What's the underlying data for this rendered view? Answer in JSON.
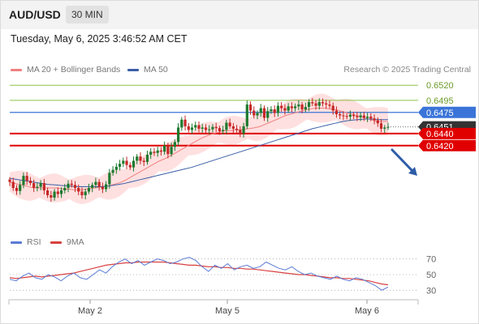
{
  "header": {
    "symbol": "AUD/USD",
    "interval": "30 MIN"
  },
  "timestamp": "Tuesday, May 6, 2025 3:46:52 AM CET",
  "legend": {
    "ma": "MA 20 + Bollinger Bands",
    "ma50": "MA 50"
  },
  "credit": "Research © 2025 Trading Central",
  "rsi_legend": {
    "rsi": "RSI",
    "ma9": "9MA"
  },
  "colors": {
    "bull": "#1e7a2e",
    "bear": "#c62828",
    "resistance": "#8bc34a",
    "pivot": "#3a74d8",
    "support": "#e00000",
    "last": "#333333",
    "ma20": "#f08080",
    "ma50": "#3a5fa8",
    "band": "#ffd6d6",
    "rsi": "#5b7bd5",
    "rsi_ma": "#d84040",
    "arrow": "#2e5ca8"
  },
  "chart_data": {
    "type": "candlestick",
    "title": "AUD/USD",
    "interval": "30 MIN",
    "ylim": [
      0.6275,
      0.6535
    ],
    "x_ticks": [
      "May 2",
      "May 5",
      "May 6"
    ],
    "levels": [
      {
        "label": "0.6520",
        "value": 0.652,
        "kind": "resistance"
      },
      {
        "label": "0.6495",
        "value": 0.6495,
        "kind": "resistance"
      },
      {
        "label": "0.6475",
        "value": 0.6475,
        "kind": "pivot"
      },
      {
        "label": "0.6451",
        "value": 0.6451,
        "kind": "last"
      },
      {
        "label": "0.6440",
        "value": 0.644,
        "kind": "support"
      },
      {
        "label": "0.6420",
        "value": 0.642,
        "kind": "support"
      }
    ],
    "closes": [
      0.636,
      0.635,
      0.6345,
      0.6355,
      0.637,
      0.6362,
      0.6358,
      0.635,
      0.6352,
      0.6358,
      0.6346,
      0.6338,
      0.6334,
      0.6344,
      0.634,
      0.6346,
      0.635,
      0.6357,
      0.6355,
      0.635,
      0.6344,
      0.6338,
      0.6344,
      0.635,
      0.6355,
      0.636,
      0.6352,
      0.6348,
      0.6356,
      0.6375,
      0.638,
      0.6385,
      0.639,
      0.6395,
      0.6388,
      0.6384,
      0.6395,
      0.6402,
      0.6395,
      0.6393,
      0.6405,
      0.641,
      0.6408,
      0.6412,
      0.641,
      0.642,
      0.6406,
      0.6418,
      0.6426,
      0.645,
      0.6463,
      0.6452,
      0.6446,
      0.645,
      0.6454,
      0.6448,
      0.645,
      0.6446,
      0.6447,
      0.6451,
      0.6449,
      0.6444,
      0.6446,
      0.6458,
      0.6452,
      0.6448,
      0.6446,
      0.644,
      0.6452,
      0.6488,
      0.6478,
      0.647,
      0.6474,
      0.6482,
      0.6466,
      0.6477,
      0.648,
      0.6474,
      0.6486,
      0.6482,
      0.6478,
      0.6485,
      0.6482,
      0.6485,
      0.6488,
      0.648,
      0.6484,
      0.6492,
      0.649,
      0.6486,
      0.6492,
      0.649,
      0.6488,
      0.6486,
      0.6478,
      0.6472,
      0.647,
      0.6469,
      0.6468,
      0.6471,
      0.6469,
      0.6467,
      0.647,
      0.6466,
      0.6468,
      0.6465,
      0.6462,
      0.6457,
      0.6448,
      0.645,
      0.6451
    ],
    "ma20": [
      0.636,
      0.6358,
      0.6356,
      0.6355,
      0.6353,
      0.6351,
      0.635,
      0.635,
      0.635,
      0.635,
      0.635,
      0.635,
      0.6349,
      0.6348,
      0.6348,
      0.6347,
      0.6347,
      0.6347,
      0.6348,
      0.6349,
      0.635,
      0.6351,
      0.6352,
      0.6353,
      0.6355,
      0.6357,
      0.6359,
      0.6362,
      0.6366,
      0.637,
      0.6374,
      0.6378,
      0.6382,
      0.6386,
      0.639,
      0.6394,
      0.6397,
      0.64,
      0.6404,
      0.6408,
      0.6412,
      0.6416,
      0.642,
      0.6424,
      0.6428,
      0.6432,
      0.6435,
      0.6438,
      0.644,
      0.6442,
      0.6444,
      0.6445,
      0.6445,
      0.6446,
      0.6446,
      0.6447,
      0.6448,
      0.6449,
      0.645,
      0.6452,
      0.6455,
      0.6458,
      0.6461,
      0.6464,
      0.6467,
      0.647,
      0.6472,
      0.6474,
      0.6476,
      0.6478,
      0.648,
      0.6481,
      0.6482,
      0.6482,
      0.6482,
      0.6481,
      0.648,
      0.6479,
      0.6477,
      0.6475,
      0.6473,
      0.6471,
      0.6469,
      0.6467,
      0.6465,
      0.6463,
      0.6461,
      0.646,
      0.646,
      0.646
    ],
    "ma50": [
      0.6366,
      0.6364,
      0.6362,
      0.636,
      0.6358,
      0.6356,
      0.6355,
      0.6354,
      0.6353,
      0.6352,
      0.6352,
      0.6352,
      0.6352,
      0.6353,
      0.6355,
      0.6357,
      0.636,
      0.6363,
      0.6366,
      0.6369,
      0.6372,
      0.6375,
      0.6378,
      0.6381,
      0.6384,
      0.6388,
      0.6392,
      0.6396,
      0.64,
      0.6404,
      0.6408,
      0.6412,
      0.6416,
      0.642,
      0.6424,
      0.6428,
      0.6432,
      0.6436,
      0.644,
      0.6444,
      0.6448,
      0.6451,
      0.6454,
      0.6457,
      0.646,
      0.6462,
      0.6463,
      0.6464,
      0.6464,
      0.6463,
      0.6463
    ],
    "rsi": [
      44,
      42,
      48,
      52,
      46,
      44,
      50,
      47,
      42,
      48,
      52,
      46,
      44,
      50,
      56,
      52,
      60,
      66,
      70,
      64,
      68,
      62,
      66,
      70,
      68,
      64,
      66,
      70,
      72,
      68,
      60,
      54,
      62,
      58,
      64,
      56,
      60,
      62,
      58,
      60,
      66,
      62,
      58,
      56,
      60,
      54,
      50,
      52,
      48,
      46,
      44,
      48,
      44,
      42,
      46,
      44,
      40,
      36,
      30,
      34
    ],
    "rsi_ma": [
      46,
      45,
      46,
      47,
      48,
      47,
      48,
      49,
      50,
      51,
      52,
      54,
      56,
      58,
      60,
      62,
      63,
      64,
      65,
      65,
      66,
      66,
      66,
      66,
      66,
      65,
      64,
      63,
      62,
      62,
      61,
      60,
      60,
      59,
      59,
      58,
      58,
      57,
      57,
      56,
      55,
      54,
      53,
      52,
      51,
      50,
      50,
      49,
      48,
      47,
      46,
      46,
      45,
      45,
      44,
      43,
      42,
      40,
      38,
      37
    ],
    "rsi_levels": [
      70,
      50,
      30
    ]
  }
}
